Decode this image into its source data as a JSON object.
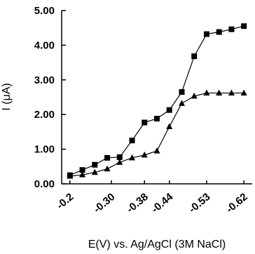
{
  "chart_data": {
    "type": "line",
    "title": "",
    "xlabel": "E(V) vs. Ag/AgCl (3M NaCl)",
    "ylabel": "I (μA)",
    "x_tick_labels": [
      "-0.2",
      "-0.30",
      "-0.38",
      "-0.44",
      "-0.53",
      "-0.62"
    ],
    "y_tick_labels": [
      "0.00",
      "1.00",
      "2.00",
      "3.00",
      "4.00",
      "5.00"
    ],
    "ylim": [
      0,
      5
    ],
    "xlim": [
      -0.18,
      -0.64
    ],
    "grid": false,
    "series": [
      {
        "marker": "square",
        "x": [
          -0.2,
          -0.23,
          -0.26,
          -0.29,
          -0.32,
          -0.35,
          -0.38,
          -0.41,
          -0.44,
          -0.47,
          -0.5,
          -0.53,
          -0.56,
          -0.59,
          -0.62
        ],
        "y": [
          0.25,
          0.4,
          0.55,
          0.75,
          0.77,
          1.25,
          1.77,
          1.88,
          2.13,
          2.65,
          3.68,
          4.32,
          4.38,
          4.46,
          4.55
        ]
      },
      {
        "marker": "triangle",
        "x": [
          -0.2,
          -0.23,
          -0.26,
          -0.29,
          -0.32,
          -0.35,
          -0.38,
          -0.41,
          -0.44,
          -0.47,
          -0.5,
          -0.53,
          -0.56,
          -0.59,
          -0.62
        ],
        "y": [
          0.22,
          0.26,
          0.33,
          0.43,
          0.62,
          0.75,
          0.83,
          0.95,
          1.65,
          2.32,
          2.53,
          2.62,
          2.62,
          2.62,
          2.62
        ]
      }
    ]
  }
}
